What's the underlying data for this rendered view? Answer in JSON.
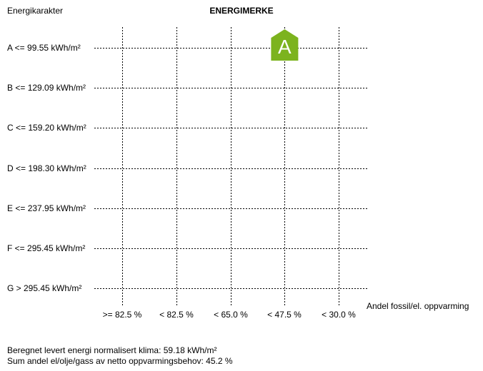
{
  "chart_data": {
    "type": "scatter",
    "title": "ENERGIMERKE",
    "ylabel": "Energikarakter",
    "xlabel": "Andel fossil/el. oppvarming",
    "y_categories": [
      "A <= 99.55 kWh/m²",
      "B <= 129.09 kWh/m²",
      "C <= 159.20 kWh/m²",
      "D <= 198.30 kWh/m²",
      "E <= 237.95 kWh/m²",
      "F <= 295.45 kWh/m²",
      "G > 295.45 kWh/m²"
    ],
    "x_categories": [
      ">= 82.5 %",
      "< 82.5 %",
      "< 65.0 %",
      "< 47.5 %",
      "< 30.0 %"
    ],
    "grid": true,
    "point": {
      "label": "A",
      "y_category": "A <= 99.55 kWh/m²",
      "x_category": "< 47.5 %",
      "color": "#7cb31e"
    }
  },
  "footer": {
    "energy_line": "Beregnet levert energi normalisert klima: 59.18 kWh/m²",
    "fossil_line": "Sum andel el/olje/gass av netto oppvarmingsbehov: 45.2 %"
  }
}
